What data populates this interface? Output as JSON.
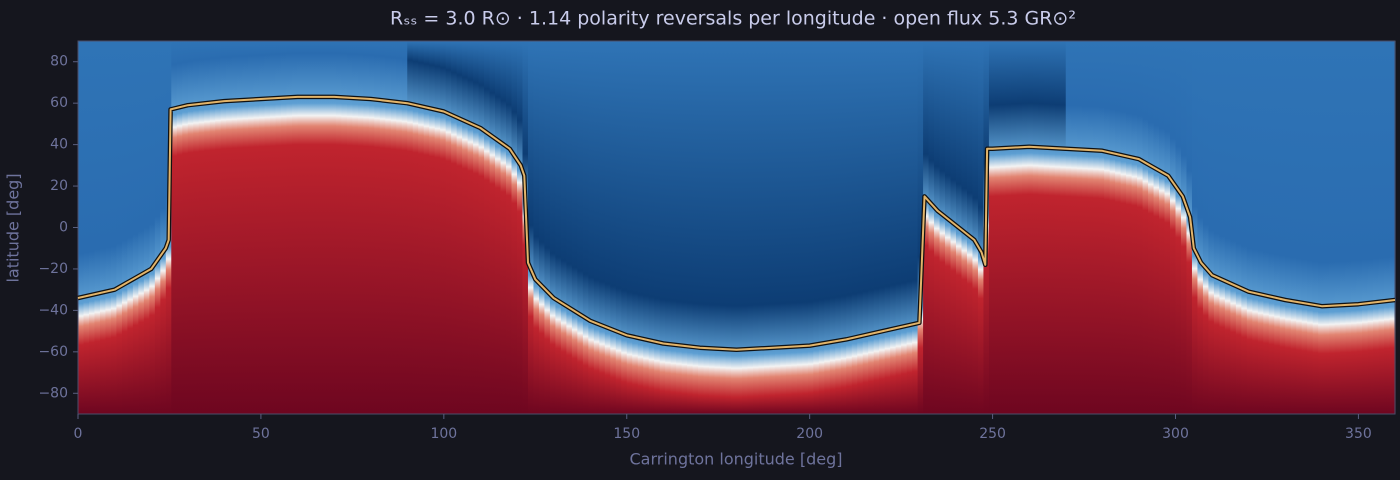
{
  "chart_data": {
    "type": "heatmap-contour",
    "title": "Rₛₛ = 3.0 R⊙  ·  1.14 polarity reversals per longitude  ·  open flux 5.3 GR⊙²",
    "x_label": "Carrington longitude [deg]",
    "y_label": "latitude [deg]",
    "xlim": [
      0,
      360
    ],
    "ylim": [
      -90,
      90
    ],
    "xticks": [
      0,
      50,
      100,
      150,
      200,
      250,
      300,
      350
    ],
    "yticks": [
      {
        "value": -80,
        "label": "−80"
      },
      {
        "value": -60,
        "label": "−60"
      },
      {
        "value": -40,
        "label": "−40"
      },
      {
        "value": -20,
        "label": "−20"
      },
      0,
      20,
      40,
      60,
      80
    ],
    "series": [
      {
        "color": "#e2b46a",
        "x": [
          0,
          10,
          20,
          24,
          24.8,
          25.3,
          30,
          40,
          50,
          60,
          70,
          80,
          90,
          100,
          110,
          118,
          121,
          122,
          123,
          125,
          130,
          140,
          150,
          160,
          170,
          180,
          190,
          200,
          210,
          220,
          230,
          231.4,
          235,
          240,
          245,
          247,
          248,
          248.5,
          250,
          260,
          270,
          280,
          290,
          298,
          302,
          304,
          305,
          307,
          310,
          320,
          330,
          340,
          350,
          360
        ],
        "y": [
          -34,
          -30,
          -20,
          -10,
          -6,
          57,
          59,
          61,
          62,
          63,
          63,
          62,
          60,
          56,
          48,
          38,
          30,
          25,
          -17,
          -25,
          -34,
          -45,
          -52,
          -56,
          -58,
          -59,
          -58,
          -57,
          -54,
          -50,
          -46,
          15,
          8,
          1,
          -6,
          -12,
          -18,
          38,
          38,
          39,
          38,
          37,
          33,
          25,
          15,
          5,
          -10,
          -17,
          -23,
          -31,
          -35,
          -38,
          -37,
          -35
        ]
      }
    ]
  }
}
